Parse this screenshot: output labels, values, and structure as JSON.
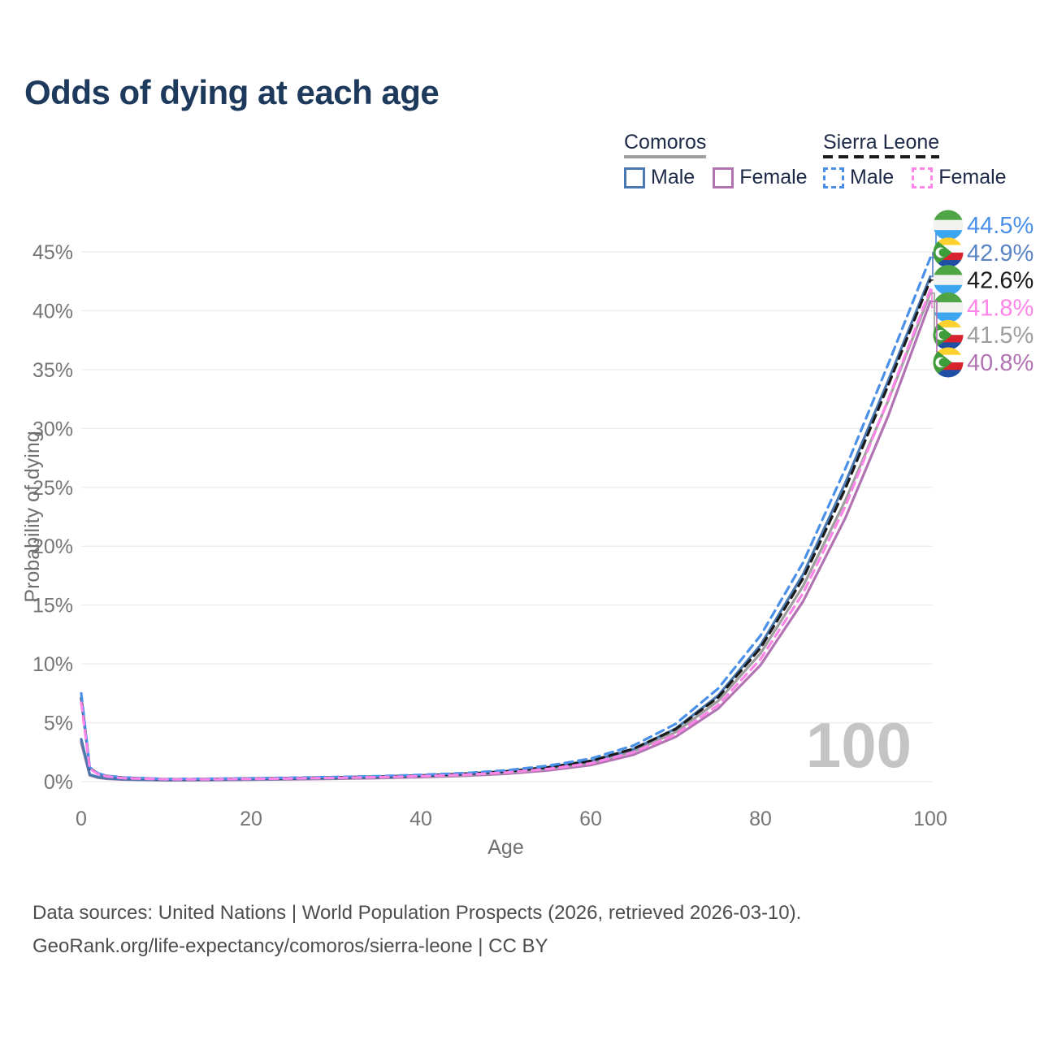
{
  "title": "Odds of dying at each age",
  "legend": {
    "groups": [
      {
        "title": "Comoros",
        "line_style": "solid",
        "underline_color": "#9e9e9e",
        "items": [
          {
            "label": "Male",
            "color": "#4a78b0",
            "dashed": false
          },
          {
            "label": "Female",
            "color": "#b273b2",
            "dashed": false
          }
        ]
      },
      {
        "title": "Sierra Leone",
        "line_style": "dashed",
        "underline_color": "#1a1a1a",
        "items": [
          {
            "label": "Male",
            "color": "#4a90e8",
            "dashed": true
          },
          {
            "label": "Female",
            "color": "#ff85e8",
            "dashed": true
          }
        ]
      }
    ]
  },
  "watermark": "100",
  "footer": {
    "line1": "Data sources: United Nations | World Population Prospects (2026, retrieved 2026-03-10).",
    "line2": "GeoRank.org/life-expectancy/comoros/sierra-leone | CC BY"
  },
  "chart_data": {
    "type": "line",
    "title": "Odds of dying at each age",
    "xlabel": "Age",
    "ylabel": "Probability of dying",
    "xlim": [
      0,
      100
    ],
    "ylim": [
      0,
      45
    ],
    "x_ticks": [
      0,
      20,
      40,
      60,
      80,
      100
    ],
    "y_ticks": [
      0,
      5,
      10,
      15,
      20,
      25,
      30,
      35,
      40,
      45
    ],
    "y_tick_suffix": "%",
    "grid": "horizontal",
    "legend_position": "top-right",
    "x": [
      0,
      1,
      2,
      3,
      5,
      10,
      15,
      20,
      25,
      30,
      35,
      40,
      45,
      50,
      55,
      60,
      65,
      70,
      75,
      80,
      85,
      90,
      95,
      100
    ],
    "series": [
      {
        "name": "Comoros Female",
        "country": "comoros",
        "sex": "female",
        "color": "#b273b2",
        "dashed": false,
        "values": [
          3.3,
          0.53,
          0.33,
          0.24,
          0.17,
          0.12,
          0.13,
          0.16,
          0.2,
          0.24,
          0.3,
          0.38,
          0.49,
          0.66,
          0.95,
          1.4,
          2.28,
          3.8,
          6.2,
          9.9,
          15.3,
          22.4,
          31.0,
          40.8
        ]
      },
      {
        "name": "Comoros Both sexes",
        "country": "comoros",
        "sex": "both",
        "color": "#9e9e9e",
        "dashed": false,
        "values": [
          3.45,
          0.57,
          0.36,
          0.26,
          0.19,
          0.13,
          0.15,
          0.18,
          0.23,
          0.27,
          0.34,
          0.43,
          0.55,
          0.75,
          1.08,
          1.58,
          2.55,
          4.2,
          6.85,
          10.9,
          16.6,
          23.9,
          32.3,
          41.5
        ]
      },
      {
        "name": "Comoros Male",
        "country": "comoros",
        "sex": "male",
        "color": "#4a78b0",
        "dashed": false,
        "values": [
          3.6,
          0.6,
          0.38,
          0.28,
          0.2,
          0.14,
          0.16,
          0.2,
          0.25,
          0.3,
          0.37,
          0.47,
          0.6,
          0.82,
          1.18,
          1.72,
          2.75,
          4.5,
          7.3,
          11.6,
          17.6,
          25.4,
          34.0,
          42.9
        ]
      },
      {
        "name": "Sierra Leone Both sexes",
        "country": "sierra-leone",
        "sex": "both",
        "color": "#1a1a1a",
        "dashed": true,
        "values": [
          7.1,
          1.15,
          0.66,
          0.47,
          0.33,
          0.2,
          0.22,
          0.26,
          0.3,
          0.36,
          0.42,
          0.52,
          0.66,
          0.87,
          1.22,
          1.76,
          2.78,
          4.45,
          7.15,
          11.35,
          17.25,
          24.9,
          33.6,
          42.6
        ]
      },
      {
        "name": "Sierra Leone Male",
        "country": "sierra-leone",
        "sex": "male",
        "color": "#4a90e8",
        "dashed": true,
        "values": [
          7.5,
          1.2,
          0.7,
          0.5,
          0.35,
          0.22,
          0.24,
          0.28,
          0.33,
          0.39,
          0.46,
          0.57,
          0.72,
          0.95,
          1.35,
          1.95,
          3.05,
          4.9,
          7.9,
          12.4,
          18.6,
          26.6,
          35.4,
          44.5
        ]
      },
      {
        "name": "Sierra Leone Female",
        "country": "sierra-leone",
        "sex": "female",
        "color": "#ff85e8",
        "dashed": true,
        "values": [
          6.7,
          1.1,
          0.62,
          0.44,
          0.3,
          0.19,
          0.2,
          0.23,
          0.27,
          0.32,
          0.38,
          0.46,
          0.58,
          0.77,
          1.08,
          1.55,
          2.48,
          4.0,
          6.5,
          10.4,
          16.0,
          23.4,
          32.4,
          41.8
        ]
      }
    ],
    "end_labels": [
      {
        "text": "44.5%",
        "color": "#4a90e8",
        "flag": "sierra-leone",
        "series": "Sierra Leone Male"
      },
      {
        "text": "42.9%",
        "color": "#5b85c4",
        "flag": "comoros",
        "series": "Comoros Male"
      },
      {
        "text": "42.6%",
        "color": "#1a1a1a",
        "flag": "sierra-leone",
        "series": "Sierra Leone Both sexes"
      },
      {
        "text": "41.8%",
        "color": "#ff85e8",
        "flag": "sierra-leone",
        "series": "Sierra Leone Female"
      },
      {
        "text": "41.5%",
        "color": "#9e9e9e",
        "flag": "comoros",
        "series": "Comoros Both sexes"
      },
      {
        "text": "40.8%",
        "color": "#b273b2",
        "flag": "comoros",
        "series": "Comoros Female"
      }
    ],
    "flag_colors": {
      "sierra-leone": {
        "green": "#4fa446",
        "white": "#f2f2f0",
        "blue": "#3ba5ef"
      },
      "comoros": {
        "yellow": "#ffd12e",
        "white": "#ffffff",
        "red": "#d8232f",
        "blue": "#1f4fa5",
        "green": "#3f9c3a"
      }
    }
  }
}
